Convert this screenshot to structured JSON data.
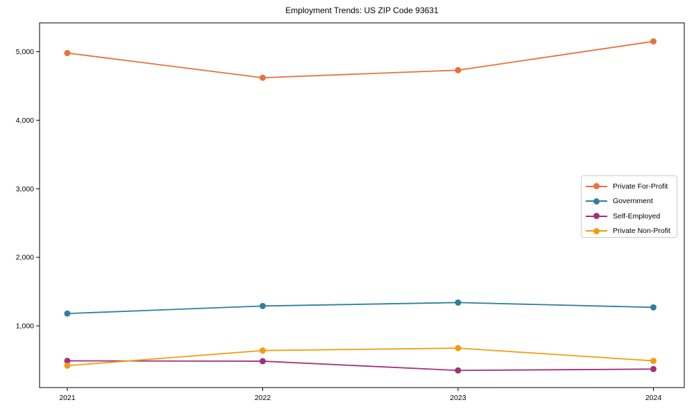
{
  "title": "Employment Trends: US ZIP Code 93631",
  "chart_data": {
    "type": "line",
    "title": "Employment Trends: US ZIP Code 93631",
    "x": [
      "2021",
      "2022",
      "2023",
      "2024"
    ],
    "series": [
      {
        "name": "Private For-Profit",
        "color": "#E8713A",
        "values": [
          4980,
          4620,
          4730,
          5150
        ]
      },
      {
        "name": "Government",
        "color": "#2E7F9C",
        "values": [
          1180,
          1290,
          1340,
          1270
        ]
      },
      {
        "name": "Self-Employed",
        "color": "#A23177",
        "values": [
          490,
          485,
          350,
          370
        ]
      },
      {
        "name": "Private Non-Profit",
        "color": "#F39C12",
        "values": [
          420,
          640,
          675,
          490
        ]
      }
    ],
    "xlabel": "",
    "ylabel": "",
    "ylim": [
      100,
      5420
    ],
    "yticks": [
      1000,
      2000,
      3000,
      4000,
      5000
    ],
    "ytick_labels": [
      "1,000",
      "2,000",
      "3,000",
      "4,000",
      "5,000"
    ],
    "grid": false,
    "legend_position": "center-right",
    "marker": "circle",
    "axis_color": "#000000"
  }
}
